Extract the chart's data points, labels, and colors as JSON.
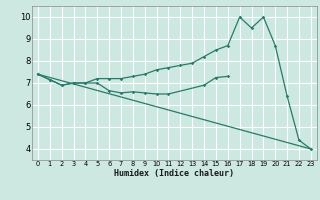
{
  "xlabel": "Humidex (Indice chaleur)",
  "bg_color": "#cce8e0",
  "grid_color": "#ffffff",
  "line_color": "#2a7a6a",
  "xlim": [
    -0.5,
    23.5
  ],
  "ylim": [
    3.5,
    10.5
  ],
  "xticks": [
    0,
    1,
    2,
    3,
    4,
    5,
    6,
    7,
    8,
    9,
    10,
    11,
    12,
    13,
    14,
    15,
    16,
    17,
    18,
    19,
    20,
    21,
    22,
    23
  ],
  "yticks": [
    4,
    5,
    6,
    7,
    8,
    9,
    10
  ],
  "series2": {
    "x": [
      0,
      1,
      2,
      3,
      4,
      5,
      6,
      7,
      8,
      9,
      10,
      11,
      12,
      13,
      14,
      15,
      16,
      17,
      18,
      19,
      20,
      21,
      22,
      23
    ],
    "y": [
      7.4,
      7.15,
      6.9,
      7.0,
      7.0,
      7.2,
      7.2,
      7.2,
      7.3,
      7.4,
      7.6,
      7.7,
      7.8,
      7.9,
      8.2,
      8.5,
      8.7,
      10.0,
      9.5,
      10.0,
      8.7,
      6.4,
      4.4,
      4.0
    ]
  },
  "series1": {
    "x": [
      0,
      1,
      2,
      3,
      4,
      5,
      6,
      7,
      8,
      9,
      10,
      11,
      14,
      15,
      16
    ],
    "y": [
      7.4,
      7.15,
      6.9,
      7.0,
      7.0,
      7.0,
      6.65,
      6.55,
      6.6,
      6.55,
      6.5,
      6.5,
      6.9,
      7.25,
      7.3
    ]
  },
  "series3": {
    "x": [
      0,
      23
    ],
    "y": [
      7.4,
      4.0
    ]
  }
}
